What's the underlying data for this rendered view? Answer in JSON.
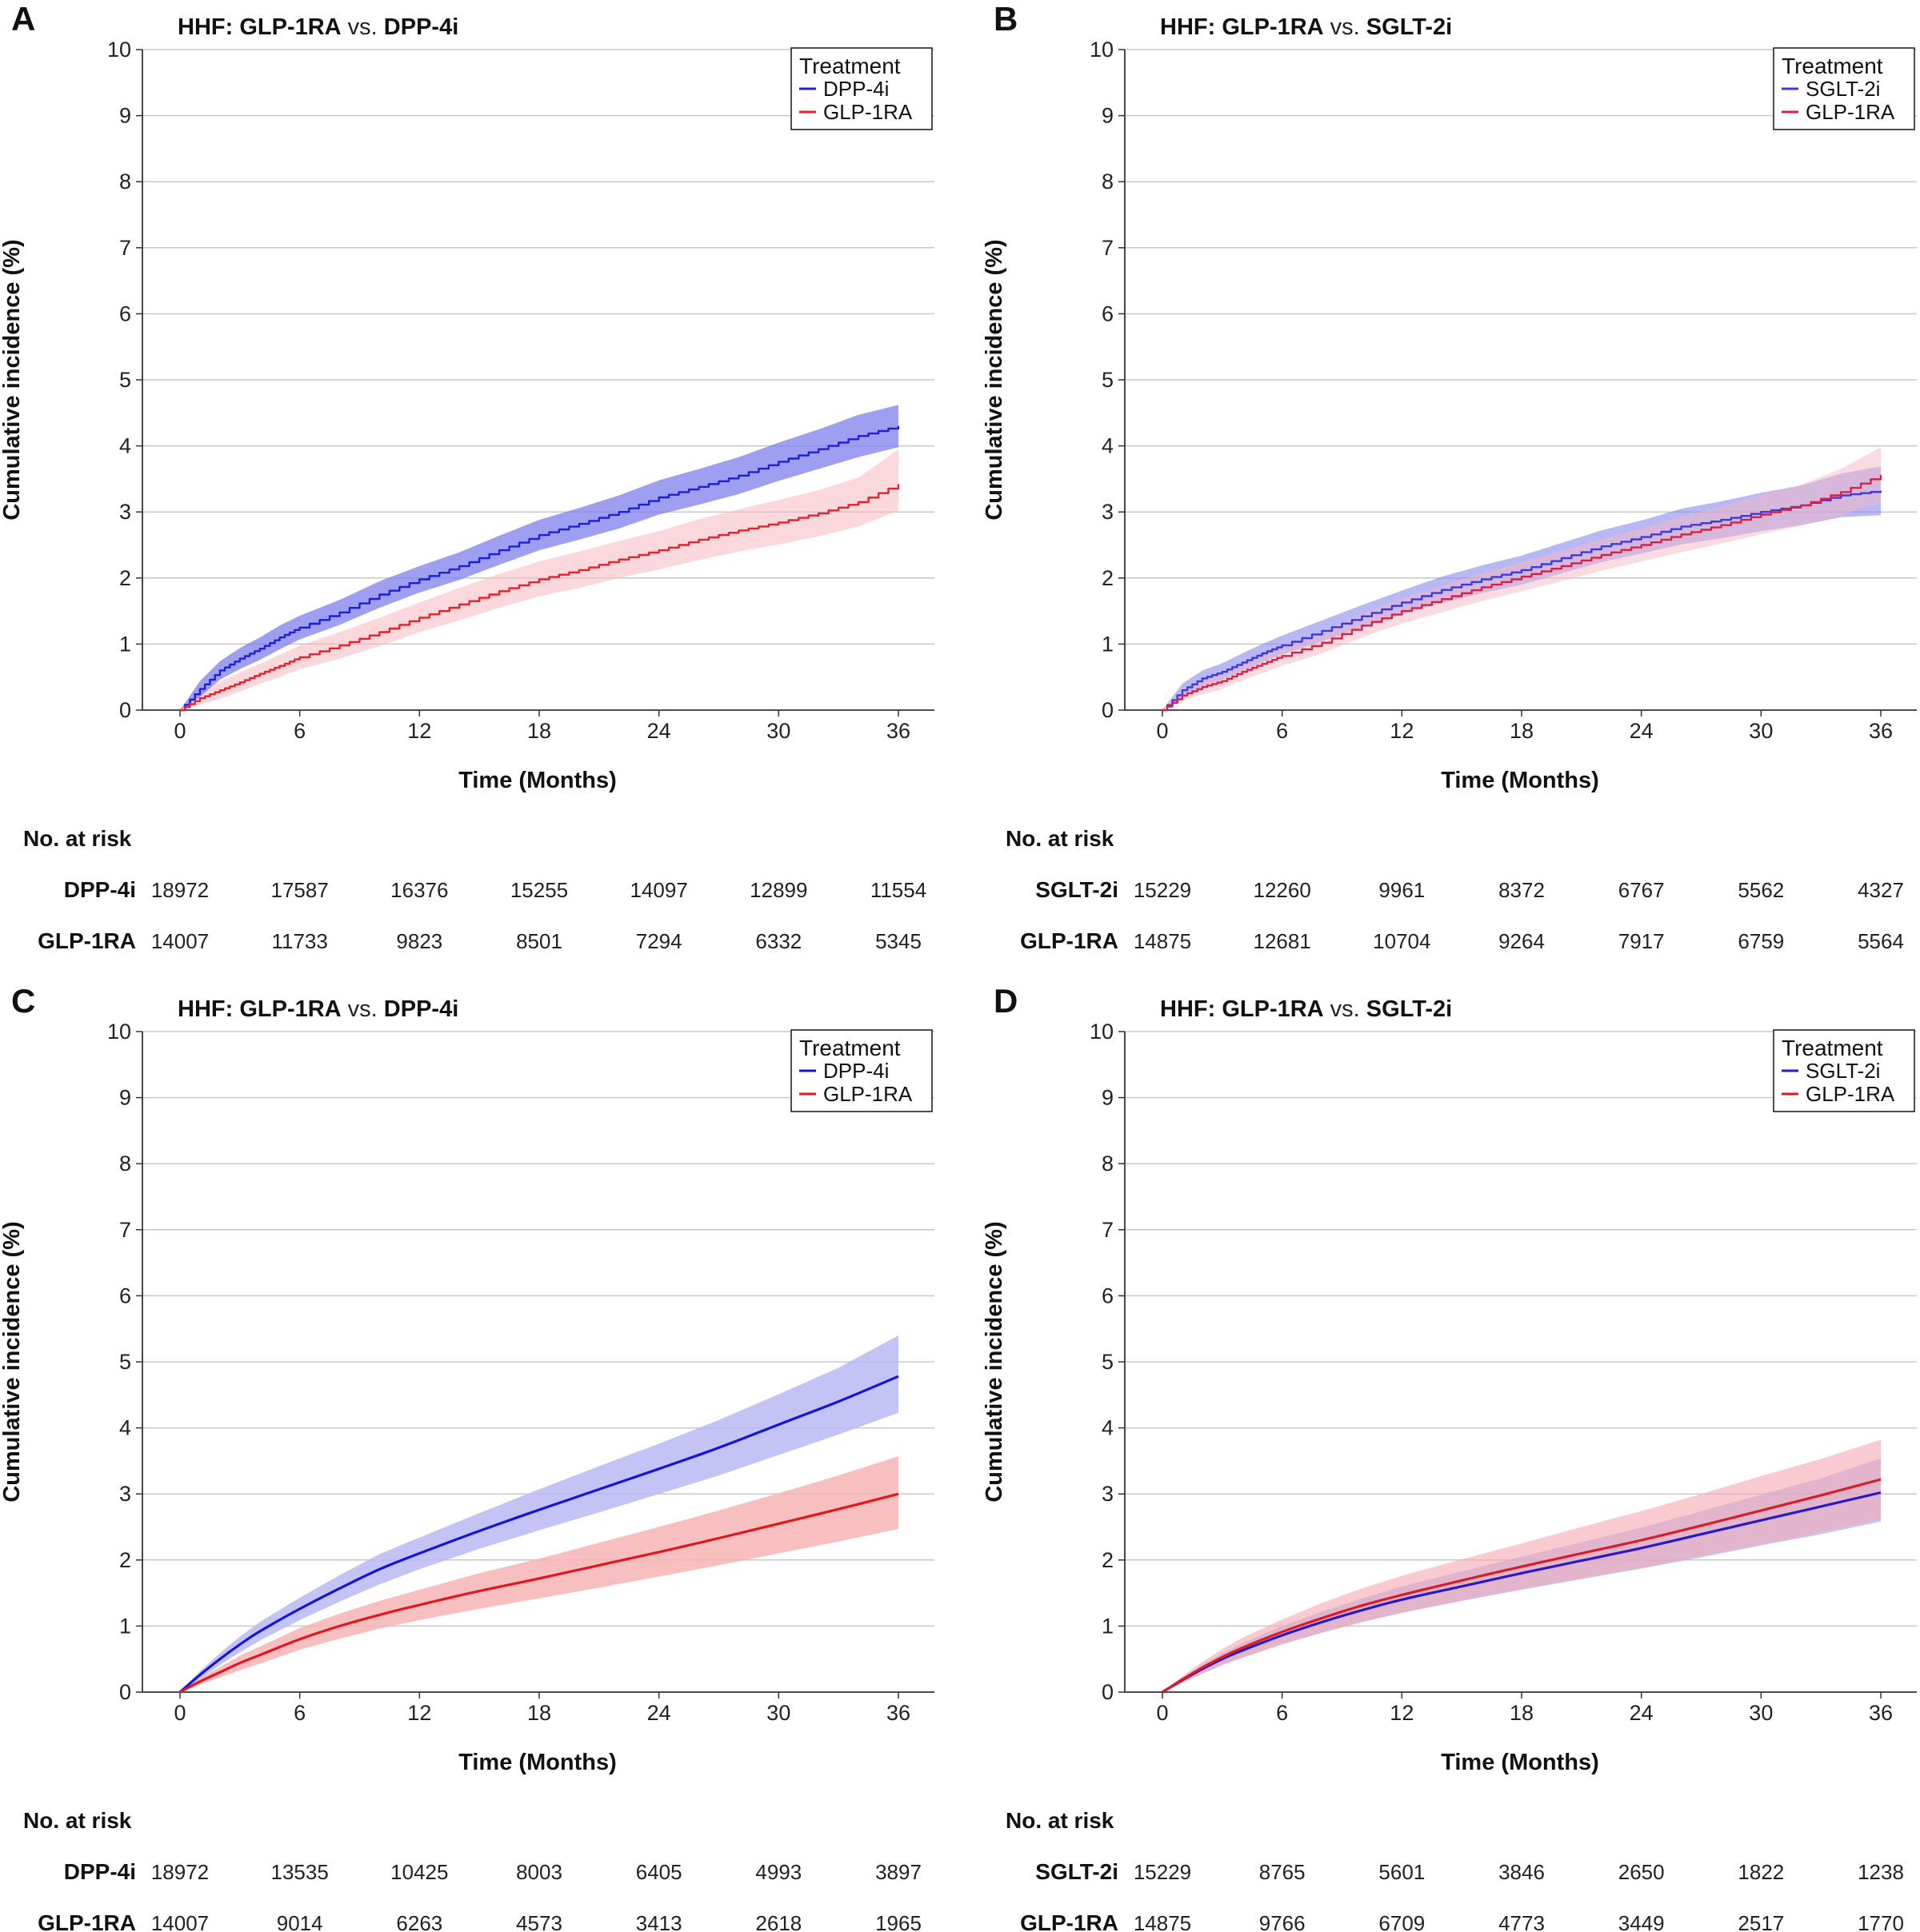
{
  "chart_data": [
    {
      "panel": "A",
      "type": "line",
      "style": "step",
      "title": {
        "prefix": "HHF: ",
        "left": "GLP-1RA",
        "vs": "vs.",
        "right": "DPP-4i"
      },
      "xlabel": "Time (Months)",
      "ylabel": "Cumulative incidence (%)",
      "xlim": [
        0,
        36
      ],
      "ylim": [
        0,
        10
      ],
      "xticks": [
        0,
        6,
        12,
        18,
        24,
        30,
        36
      ],
      "yticks": [
        0,
        1,
        2,
        3,
        4,
        5,
        6,
        7,
        8,
        9,
        10
      ],
      "grid": "horizontal",
      "legend": {
        "title": "Treatment",
        "position": "top-right"
      },
      "x": [
        0,
        1,
        2,
        3,
        4,
        5,
        6,
        8,
        10,
        12,
        14,
        16,
        18,
        20,
        22,
        24,
        26,
        28,
        30,
        32,
        34,
        36
      ],
      "series": [
        {
          "name": "DPP-4i",
          "color": "#1f1fd6",
          "band_color": "#7f7fee",
          "band_opacity": 0.75,
          "values": [
            0,
            0.32,
            0.6,
            0.78,
            0.93,
            1.1,
            1.25,
            1.48,
            1.75,
            1.98,
            2.18,
            2.42,
            2.65,
            2.82,
            3.0,
            3.22,
            3.38,
            3.55,
            3.76,
            3.95,
            4.15,
            4.3
          ],
          "lower": [
            0,
            0.2,
            0.46,
            0.62,
            0.76,
            0.92,
            1.07,
            1.29,
            1.55,
            1.78,
            1.97,
            2.2,
            2.42,
            2.58,
            2.75,
            2.96,
            3.11,
            3.27,
            3.47,
            3.65,
            3.83,
            3.98
          ],
          "upper": [
            0,
            0.44,
            0.74,
            0.94,
            1.1,
            1.28,
            1.43,
            1.67,
            1.95,
            2.18,
            2.39,
            2.64,
            2.88,
            3.06,
            3.25,
            3.48,
            3.65,
            3.83,
            4.05,
            4.25,
            4.47,
            4.62
          ]
        },
        {
          "name": "GLP-1RA",
          "color": "#e8202a",
          "band_color": "#f7b8c0",
          "band_opacity": 0.55,
          "values": [
            0,
            0.18,
            0.3,
            0.42,
            0.55,
            0.67,
            0.8,
            0.98,
            1.18,
            1.4,
            1.6,
            1.8,
            1.98,
            2.12,
            2.28,
            2.42,
            2.58,
            2.72,
            2.84,
            2.98,
            3.15,
            3.42
          ],
          "lower": [
            0,
            0.08,
            0.17,
            0.28,
            0.4,
            0.5,
            0.62,
            0.78,
            0.97,
            1.18,
            1.36,
            1.55,
            1.72,
            1.85,
            2.0,
            2.13,
            2.27,
            2.4,
            2.51,
            2.63,
            2.78,
            3.02
          ],
          "upper": [
            0,
            0.28,
            0.43,
            0.57,
            0.7,
            0.84,
            0.98,
            1.18,
            1.4,
            1.63,
            1.85,
            2.06,
            2.25,
            2.4,
            2.56,
            2.71,
            2.89,
            3.04,
            3.18,
            3.33,
            3.52,
            3.95
          ]
        }
      ],
      "at_risk": {
        "heading": "No. at risk",
        "rows": [
          {
            "label": "DPP-4i",
            "values": [
              "18972",
              "17587",
              "16376",
              "15255",
              "14097",
              "12899",
              "11554"
            ]
          },
          {
            "label": "GLP-1RA",
            "values": [
              "14007",
              "11733",
              "9823",
              "8501",
              "7294",
              "6332",
              "5345"
            ]
          }
        ]
      }
    },
    {
      "panel": "B",
      "type": "line",
      "style": "step",
      "title": {
        "prefix": "HHF: ",
        "left": "GLP-1RA",
        "vs": "vs.",
        "right": "SGLT-2i"
      },
      "xlabel": "Time (Months)",
      "ylabel": "Cumulative incidence (%)",
      "xlim": [
        0,
        36
      ],
      "ylim": [
        0,
        10
      ],
      "xticks": [
        0,
        6,
        12,
        18,
        24,
        30,
        36
      ],
      "yticks": [
        0,
        1,
        2,
        3,
        4,
        5,
        6,
        7,
        8,
        9,
        10
      ],
      "grid": "horizontal",
      "legend": {
        "title": "Treatment",
        "position": "top-right"
      },
      "x": [
        0,
        1,
        2,
        3,
        4,
        5,
        6,
        8,
        10,
        12,
        14,
        16,
        18,
        20,
        22,
        24,
        26,
        28,
        30,
        32,
        34,
        36
      ],
      "series": [
        {
          "name": "SGLT-2i",
          "color": "#3a3ae0",
          "band_color": "#8888ee",
          "band_opacity": 0.6,
          "values": [
            0,
            0.3,
            0.48,
            0.58,
            0.72,
            0.86,
            0.98,
            1.2,
            1.42,
            1.63,
            1.82,
            1.98,
            2.12,
            2.3,
            2.48,
            2.62,
            2.78,
            2.88,
            3.0,
            3.1,
            3.25,
            3.32
          ],
          "lower": [
            0,
            0.2,
            0.36,
            0.46,
            0.59,
            0.72,
            0.84,
            1.04,
            1.25,
            1.45,
            1.62,
            1.77,
            1.9,
            2.07,
            2.24,
            2.37,
            2.51,
            2.6,
            2.71,
            2.8,
            2.92,
            2.95
          ],
          "upper": [
            0,
            0.4,
            0.6,
            0.71,
            0.86,
            1.0,
            1.13,
            1.36,
            1.59,
            1.81,
            2.02,
            2.19,
            2.34,
            2.53,
            2.72,
            2.87,
            3.05,
            3.16,
            3.29,
            3.4,
            3.58,
            3.69
          ]
        },
        {
          "name": "GLP-1RA",
          "color": "#d62246",
          "band_color": "#f5b8c4",
          "band_opacity": 0.5,
          "values": [
            0,
            0.22,
            0.35,
            0.44,
            0.58,
            0.7,
            0.82,
            1.02,
            1.28,
            1.5,
            1.68,
            1.86,
            2.02,
            2.18,
            2.35,
            2.5,
            2.66,
            2.8,
            2.96,
            3.1,
            3.3,
            3.56
          ],
          "lower": [
            0,
            0.13,
            0.24,
            0.32,
            0.45,
            0.56,
            0.67,
            0.86,
            1.1,
            1.31,
            1.48,
            1.65,
            1.8,
            1.95,
            2.11,
            2.25,
            2.39,
            2.52,
            2.66,
            2.79,
            2.95,
            3.14
          ],
          "upper": [
            0,
            0.31,
            0.46,
            0.56,
            0.71,
            0.84,
            0.97,
            1.18,
            1.46,
            1.69,
            1.88,
            2.07,
            2.24,
            2.41,
            2.59,
            2.75,
            2.93,
            3.08,
            3.26,
            3.41,
            3.65,
            3.98
          ]
        }
      ],
      "at_risk": {
        "heading": "No. at risk",
        "rows": [
          {
            "label": "SGLT-2i",
            "values": [
              "15229",
              "12260",
              "9961",
              "8372",
              "6767",
              "5562",
              "4327"
            ]
          },
          {
            "label": "GLP-1RA",
            "values": [
              "14875",
              "12681",
              "10704",
              "9264",
              "7917",
              "6759",
              "5564"
            ]
          }
        ]
      }
    },
    {
      "panel": "C",
      "type": "line",
      "style": "smooth",
      "title": {
        "prefix": "HHF: ",
        "left": "GLP-1RA",
        "vs": "vs.",
        "right": "DPP-4i"
      },
      "xlabel": "Time (Months)",
      "ylabel": "Cumulative incidence (%)",
      "xlim": [
        0,
        36
      ],
      "ylim": [
        0,
        10
      ],
      "xticks": [
        0,
        6,
        12,
        18,
        24,
        30,
        36
      ],
      "yticks": [
        0,
        1,
        2,
        3,
        4,
        5,
        6,
        7,
        8,
        9,
        10
      ],
      "grid": "horizontal",
      "legend": {
        "title": "Treatment",
        "position": "top-right"
      },
      "x": [
        0,
        1,
        2,
        3,
        4,
        6,
        8,
        10,
        12,
        15,
        18,
        21,
        24,
        27,
        30,
        33,
        36
      ],
      "series": [
        {
          "name": "DPP-4i",
          "color": "#1414dc",
          "band_color": "#b8b8f4",
          "band_opacity": 0.85,
          "values": [
            0,
            0.26,
            0.5,
            0.72,
            0.92,
            1.26,
            1.57,
            1.86,
            2.1,
            2.44,
            2.76,
            3.07,
            3.38,
            3.7,
            4.05,
            4.4,
            4.78
          ],
          "lower": [
            0,
            0.2,
            0.41,
            0.6,
            0.78,
            1.09,
            1.37,
            1.63,
            1.86,
            2.17,
            2.45,
            2.72,
            3.0,
            3.28,
            3.59,
            3.9,
            4.23
          ],
          "upper": [
            0,
            0.32,
            0.59,
            0.84,
            1.06,
            1.43,
            1.77,
            2.09,
            2.34,
            2.71,
            3.07,
            3.42,
            3.76,
            4.12,
            4.51,
            4.91,
            5.4
          ]
        },
        {
          "name": "GLP-1RA",
          "color": "#e3161f",
          "band_color": "#f6b4b4",
          "band_opacity": 0.85,
          "values": [
            0,
            0.16,
            0.3,
            0.44,
            0.56,
            0.8,
            1.0,
            1.17,
            1.32,
            1.53,
            1.72,
            1.92,
            2.12,
            2.33,
            2.55,
            2.77,
            3.0
          ],
          "lower": [
            0,
            0.11,
            0.22,
            0.33,
            0.43,
            0.64,
            0.81,
            0.96,
            1.09,
            1.26,
            1.42,
            1.58,
            1.75,
            1.92,
            2.1,
            2.28,
            2.47
          ],
          "upper": [
            0,
            0.21,
            0.38,
            0.55,
            0.69,
            0.97,
            1.19,
            1.38,
            1.55,
            1.8,
            2.02,
            2.26,
            2.5,
            2.75,
            3.01,
            3.28,
            3.57
          ]
        }
      ],
      "at_risk": {
        "heading": "No. at risk",
        "rows": [
          {
            "label": "DPP-4i",
            "values": [
              "18972",
              "13535",
              "10425",
              "8003",
              "6405",
              "4993",
              "3897"
            ]
          },
          {
            "label": "GLP-1RA",
            "values": [
              "14007",
              "9014",
              "6263",
              "4573",
              "3413",
              "2618",
              "1965"
            ]
          }
        ]
      }
    },
    {
      "panel": "D",
      "type": "line",
      "style": "smooth",
      "title": {
        "prefix": "HHF: ",
        "left": "GLP-1RA",
        "vs": "vs.",
        "right": "SGLT-2i"
      },
      "xlabel": "Time (Months)",
      "ylabel": "Cumulative incidence (%)",
      "xlim": [
        0,
        36
      ],
      "ylim": [
        0,
        10
      ],
      "xticks": [
        0,
        6,
        12,
        18,
        24,
        30,
        36
      ],
      "yticks": [
        0,
        1,
        2,
        3,
        4,
        5,
        6,
        7,
        8,
        9,
        10
      ],
      "grid": "horizontal",
      "legend": {
        "title": "Treatment",
        "position": "top-right"
      },
      "x": [
        0,
        1,
        2,
        3,
        4,
        6,
        8,
        10,
        12,
        15,
        18,
        21,
        24,
        27,
        30,
        33,
        36
      ],
      "series": [
        {
          "name": "SGLT-2i",
          "color": "#2a18c8",
          "band_color": "#b4b4f0",
          "band_opacity": 0.75,
          "values": [
            0,
            0.18,
            0.35,
            0.5,
            0.63,
            0.86,
            1.06,
            1.24,
            1.4,
            1.6,
            1.8,
            1.99,
            2.18,
            2.39,
            2.6,
            2.81,
            3.02
          ],
          "lower": [
            0,
            0.14,
            0.28,
            0.41,
            0.52,
            0.73,
            0.9,
            1.06,
            1.2,
            1.38,
            1.55,
            1.71,
            1.87,
            2.04,
            2.22,
            2.39,
            2.58
          ],
          "upper": [
            0,
            0.22,
            0.42,
            0.59,
            0.74,
            1.0,
            1.22,
            1.42,
            1.6,
            1.83,
            2.05,
            2.27,
            2.49,
            2.74,
            2.99,
            3.24,
            3.54
          ]
        },
        {
          "name": "GLP-1RA",
          "color": "#d81c28",
          "band_color": "#f5a8b0",
          "band_opacity": 0.6,
          "values": [
            0,
            0.19,
            0.37,
            0.53,
            0.67,
            0.91,
            1.12,
            1.31,
            1.47,
            1.69,
            1.9,
            2.1,
            2.3,
            2.52,
            2.75,
            2.98,
            3.22
          ],
          "lower": [
            0,
            0.14,
            0.28,
            0.41,
            0.52,
            0.72,
            0.9,
            1.06,
            1.2,
            1.39,
            1.56,
            1.72,
            1.88,
            2.06,
            2.24,
            2.42,
            2.62
          ],
          "upper": [
            0,
            0.24,
            0.46,
            0.65,
            0.82,
            1.1,
            1.35,
            1.57,
            1.76,
            2.01,
            2.25,
            2.5,
            2.74,
            3.0,
            3.27,
            3.53,
            3.82
          ]
        }
      ],
      "at_risk": {
        "heading": "No. at risk",
        "rows": [
          {
            "label": "SGLT-2i",
            "values": [
              "15229",
              "8765",
              "5601",
              "3846",
              "2650",
              "1822",
              "1238"
            ]
          },
          {
            "label": "GLP-1RA",
            "values": [
              "14875",
              "9766",
              "6709",
              "4773",
              "3449",
              "2517",
              "1770"
            ]
          }
        ]
      }
    }
  ]
}
